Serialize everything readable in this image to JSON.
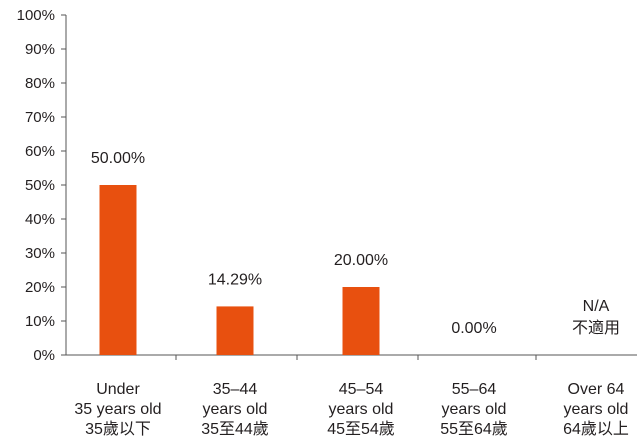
{
  "chart_data": {
    "type": "bar",
    "categories": [
      [
        "Under",
        "35 years old",
        "35歲以下"
      ],
      [
        "35–44",
        "years old",
        "35至44歲"
      ],
      [
        "45–54",
        "years old",
        "45至54歲"
      ],
      [
        "55–64",
        "years old",
        "55至64歲"
      ],
      [
        "Over 64",
        "years old",
        "64歲以上"
      ]
    ],
    "values": [
      50.0,
      14.29,
      20.0,
      0.0,
      null
    ],
    "data_labels": [
      [
        "50.00%"
      ],
      [
        "14.29%"
      ],
      [
        "20.00%"
      ],
      [
        "0.00%"
      ],
      [
        "N/A",
        "不適用"
      ]
    ],
    "ylim": [
      0,
      100
    ],
    "yticks": [
      0,
      10,
      20,
      30,
      40,
      50,
      60,
      70,
      80,
      90,
      100
    ],
    "ytick_labels": [
      "0%",
      "10%",
      "20%",
      "30%",
      "40%",
      "50%",
      "60%",
      "70%",
      "80%",
      "90%",
      "100%"
    ],
    "bar_color": "#e8500f",
    "axis_color": "#555555",
    "grid": false,
    "title": "",
    "xlabel": "",
    "ylabel": ""
  }
}
